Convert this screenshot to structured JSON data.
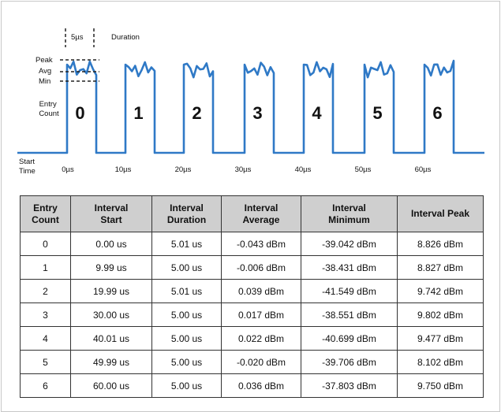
{
  "diagram": {
    "width_label": "5µs",
    "duration_label": "Duration",
    "level_labels": [
      "Peak",
      "Avg",
      "Min"
    ],
    "entry_count_label": "Entry\nCount",
    "start_time_label": "Start\nTime",
    "pulse_numbers": [
      "0",
      "1",
      "2",
      "3",
      "4",
      "5",
      "6"
    ],
    "time_ticks": [
      "0µs",
      "10µs",
      "20µs",
      "30µs",
      "40µs",
      "50µs",
      "60µs"
    ]
  },
  "table": {
    "headers": [
      "Entry\nCount",
      "Interval\nStart",
      "Interval\nDuration",
      "Interval\nAverage",
      "Interval\nMinimum",
      "Interval Peak"
    ],
    "rows": [
      [
        "0",
        "0.00 us",
        "5.01 us",
        "-0.043 dBm",
        "-39.042 dBm",
        "8.826 dBm"
      ],
      [
        "1",
        "9.99 us",
        "5.00 us",
        "-0.006 dBm",
        "-38.431 dBm",
        "8.827 dBm"
      ],
      [
        "2",
        "19.99 us",
        "5.01 us",
        "0.039 dBm",
        "-41.549 dBm",
        "9.742 dBm"
      ],
      [
        "3",
        "30.00 us",
        "5.00 us",
        "0.017 dBm",
        "-38.551 dBm",
        "9.802 dBm"
      ],
      [
        "4",
        "40.01 us",
        "5.00 us",
        "0.022 dBm",
        "-40.699 dBm",
        "9.477 dBm"
      ],
      [
        "5",
        "49.99 us",
        "5.00 us",
        "-0.020 dBm",
        "-39.706 dBm",
        "8.102 dBm"
      ],
      [
        "6",
        "60.00 us",
        "5.00 us",
        "0.036 dBm",
        "-37.803 dBm",
        "9.750 dBm"
      ]
    ]
  }
}
